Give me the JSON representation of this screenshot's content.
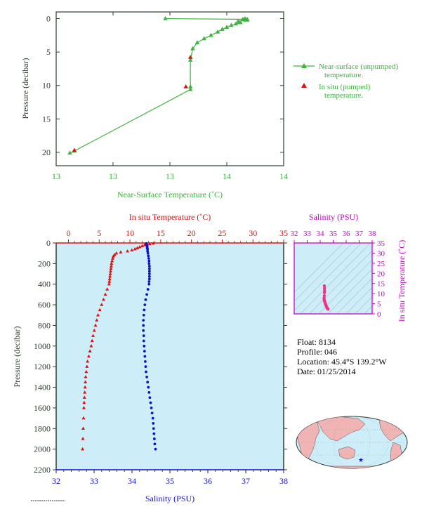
{
  "colors": {
    "green": "#3cb43c",
    "red": "#dd1111",
    "blue": "#1111cc",
    "magenta": "#cc00cc",
    "axis_dark": "#2e3e2e",
    "profile_bg": "#cdeef8",
    "pink": "#ee3388"
  },
  "info": {
    "float": "Float:  8134",
    "profile": "Profile:  046",
    "location": "Location:  45.4°S  139.2°W",
    "date": "Date:  01/25/2014"
  },
  "chart_data": [
    {
      "type": "line",
      "xlabel": "Near-Surface Temperature (˚C)",
      "ylabel": "Pressure (decibar)",
      "xticks": [
        "13",
        "13",
        "13",
        "14",
        "14"
      ],
      "xlim": [
        13.0,
        14.0
      ],
      "ylim": [
        22,
        -1
      ],
      "yticks": [
        0,
        5,
        10,
        15,
        20
      ],
      "legend_position": "right",
      "series": [
        {
          "name": "Near-surface (unpumped) temperature.",
          "marker": "triangle",
          "color": "#3cb43c",
          "x": [
            13.06,
            13.08,
            13.59,
            13.59,
            13.59,
            13.6,
            13.62,
            13.65,
            13.68,
            13.71,
            13.73,
            13.75,
            13.77,
            13.79,
            13.81,
            13.8,
            13.84,
            13.83,
            13.83,
            13.82,
            13.83,
            13.83,
            13.84,
            13.48
          ],
          "y": [
            20.1,
            19.8,
            10.6,
            10.2,
            6.2,
            4.5,
            3.6,
            3.0,
            2.5,
            2.0,
            1.6,
            1.3,
            1.0,
            0.8,
            0.6,
            0.4,
            0.2,
            0.1,
            0.0,
            0.1,
            0.2,
            0.2,
            0.1,
            0.0
          ]
        },
        {
          "name": "In situ (pumped) temperature.",
          "marker": "triangle",
          "color": "#dd1111",
          "x": [
            13.08,
            13.57,
            13.59
          ],
          "y": [
            19.7,
            10.2,
            5.8
          ]
        }
      ]
    },
    {
      "type": "scatter",
      "title": "In situ Temperature (˚C)",
      "xlabel": "Salinity (PSU)",
      "ylabel": "Pressure (decibar)",
      "ylim": [
        2200,
        0
      ],
      "yticks": [
        0,
        200,
        400,
        600,
        800,
        1000,
        1200,
        1400,
        1600,
        1800,
        2000,
        2200
      ],
      "temperature_axis": {
        "range": [
          -2,
          35
        ],
        "ticks": [
          0,
          5,
          10,
          15,
          20,
          25,
          30,
          35
        ]
      },
      "salinity_axis": {
        "range": [
          32,
          38
        ],
        "ticks": [
          32,
          33,
          34,
          35,
          36,
          37,
          38
        ]
      },
      "series": [
        {
          "name": "Temperature",
          "marker": "triangle",
          "color": "#dd1111",
          "pressure": [
            5,
            10,
            20,
            30,
            40,
            50,
            60,
            70,
            80,
            90,
            100,
            115,
            130,
            150,
            175,
            200,
            225,
            250,
            275,
            300,
            325,
            350,
            375,
            400,
            450,
            500,
            550,
            600,
            650,
            700,
            750,
            800,
            850,
            900,
            950,
            1000,
            1050,
            1100,
            1150,
            1200,
            1250,
            1300,
            1350,
            1400,
            1450,
            1500,
            1550,
            1600,
            1700,
            1800,
            1900,
            2000
          ],
          "temperature": [
            13.8,
            13.2,
            12.4,
            12.0,
            11.6,
            11.2,
            10.8,
            10.3,
            9.6,
            8.5,
            7.8,
            7.5,
            7.3,
            7.2,
            7.1,
            7.0,
            6.95,
            6.9,
            6.85,
            6.8,
            6.75,
            6.7,
            6.65,
            6.6,
            6.3,
            6.0,
            5.7,
            5.4,
            5.1,
            4.8,
            4.6,
            4.4,
            4.2,
            4.0,
            3.85,
            3.7,
            3.5,
            3.3,
            3.1,
            3.0,
            2.9,
            2.8,
            2.75,
            2.7,
            2.65,
            2.6,
            2.55,
            2.5,
            2.45,
            2.4,
            2.35,
            2.3
          ]
        },
        {
          "name": "Salinity",
          "marker": "circle",
          "color": "#1111cc",
          "pressure": [
            5,
            10,
            20,
            30,
            40,
            50,
            60,
            80,
            100,
            125,
            150,
            175,
            200,
            225,
            250,
            275,
            300,
            325,
            350,
            375,
            400,
            450,
            500,
            550,
            600,
            650,
            700,
            750,
            800,
            850,
            900,
            950,
            1000,
            1050,
            1100,
            1150,
            1200,
            1250,
            1300,
            1350,
            1400,
            1450,
            1500,
            1550,
            1600,
            1650,
            1700,
            1750,
            1800,
            1850,
            1900,
            1950,
            2000
          ],
          "salinity": [
            34.38,
            34.38,
            34.39,
            34.4,
            34.4,
            34.4,
            34.41,
            34.41,
            34.42,
            34.43,
            34.44,
            34.45,
            34.45,
            34.46,
            34.46,
            34.46,
            34.46,
            34.46,
            34.46,
            34.45,
            34.45,
            34.42,
            34.39,
            34.36,
            34.34,
            34.32,
            34.31,
            34.3,
            34.3,
            34.3,
            34.31,
            34.31,
            34.32,
            34.33,
            34.34,
            34.35,
            34.36,
            34.37,
            34.39,
            34.41,
            34.43,
            34.45,
            34.47,
            34.49,
            34.51,
            34.53,
            34.55,
            34.56,
            34.57,
            34.58,
            34.59,
            34.6,
            34.62
          ]
        }
      ]
    },
    {
      "type": "scatter",
      "title": "Salinity (PSU)",
      "ylabel": "In situ Temperature (˚C)",
      "xlim": [
        32,
        38
      ],
      "ylim": [
        0,
        35
      ],
      "xticks": [
        32,
        33,
        34,
        35,
        36,
        37,
        38
      ],
      "yticks": [
        0,
        5,
        10,
        15,
        20,
        25,
        30,
        35
      ],
      "series": [
        {
          "name": "T-S",
          "color": "#ee3388",
          "salinity": [
            34.32,
            34.33,
            34.34,
            34.33,
            34.32,
            34.3,
            34.31,
            34.33,
            34.35,
            34.38,
            34.4,
            34.42,
            34.45,
            34.47,
            34.5,
            34.53,
            34.55,
            34.58,
            34.6
          ],
          "temperature": [
            13.8,
            12.6,
            11.5,
            10.5,
            9.0,
            7.8,
            7.0,
            6.5,
            6.0,
            5.5,
            5.0,
            4.6,
            4.2,
            3.8,
            3.4,
            3.0,
            2.7,
            2.5,
            2.3
          ]
        }
      ]
    }
  ],
  "map": {
    "marker_symbol": "★"
  }
}
